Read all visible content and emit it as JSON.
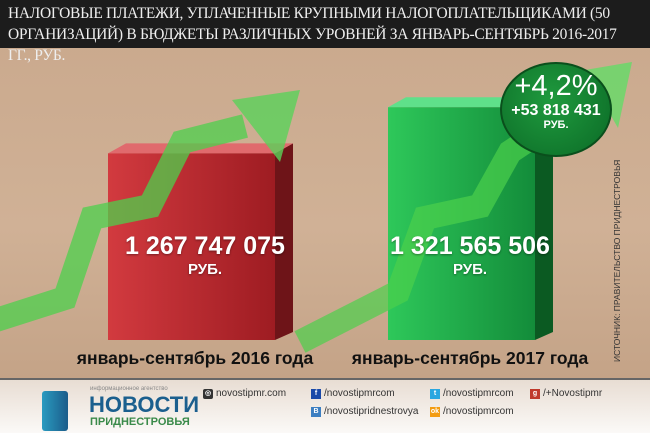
{
  "title": "НАЛОГОВЫЕ ПЛАТЕЖИ, УПЛАЧЕННЫЕ КРУПНЫМИ НАЛОГОПЛАТЕЛЬЩИКАМИ (50 ОРГАНИЗАЦИЙ) В БЮДЖЕТЫ РАЗЛИЧНЫХ УРОВНЕЙ ЗА ЯНВАРЬ-СЕНТЯБРЬ 2016-2017 ГГ., РУБ.",
  "chart_data": {
    "type": "bar",
    "title": "НАЛОГОВЫЕ ПЛАТЕЖИ, УПЛАЧЕННЫЕ КРУПНЫМИ НАЛОГОПЛАТЕЛЬЩИКАМИ (50 ОРГАНИЗАЦИЙ) В БЮДЖЕТЫ РАЗЛИЧНЫХ УРОВНЕЙ ЗА ЯНВАРЬ-СЕНТЯБРЬ 2016-2017 ГГ., РУБ.",
    "categories": [
      "январь-сентябрь 2016 года",
      "январь-сентябрь 2017 года"
    ],
    "values": [
      1267747075,
      1321565506
    ],
    "value_labels": [
      "1 267 747 075",
      "1 321 565 506"
    ],
    "unit": "РУБ.",
    "colors": [
      "#c0272d",
      "#1fa84a"
    ],
    "change": {
      "percent": "+4,2%",
      "absolute": "+53 818 431",
      "unit": "РУБ."
    }
  },
  "source": "ИСТОЧНИК: ПРАВИТЕЛЬСТВО ПРИДНЕСТРОВЬЯ",
  "footer": {
    "logo": {
      "small": "информационное агентство",
      "big": "НОВОСТИ",
      "sub": "ПРИДНЕСТРОВЬЯ"
    },
    "links": [
      {
        "icon": "globe-icon",
        "text": "novostipmr.com"
      },
      {
        "icon": "facebook-icon",
        "text": "/novostipmrcom"
      },
      {
        "icon": "twitter-icon",
        "text": "/novostipmrcom"
      },
      {
        "icon": "google-plus-icon",
        "text": "/+Novostipmr"
      },
      {
        "icon": "vk-icon",
        "text": "/novostipridnestrovya"
      },
      {
        "icon": "odnoklassniki-icon",
        "text": "/novostipmrcom"
      }
    ]
  }
}
